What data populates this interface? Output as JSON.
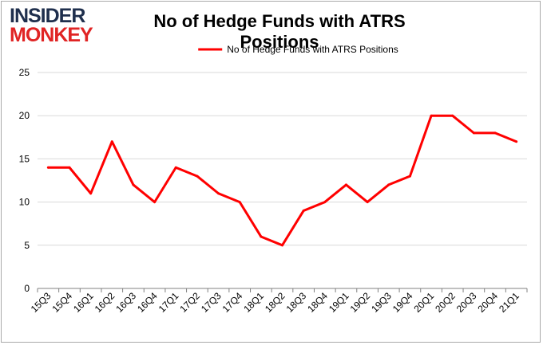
{
  "logo": {
    "line1": "INSIDER",
    "line2": "MONKEY"
  },
  "colors": {
    "series": "#ff0000",
    "grid": "#d9d9d9",
    "axis": "#808080"
  },
  "chart_data": {
    "type": "line",
    "title": "No of Hedge Funds with ATRS Positions",
    "xlabel": "",
    "ylabel": "",
    "categories": [
      "15Q3",
      "15Q4",
      "16Q1",
      "16Q2",
      "16Q3",
      "16Q4",
      "17Q1",
      "17Q2",
      "17Q3",
      "17Q4",
      "18Q1",
      "18Q2",
      "18Q3",
      "18Q4",
      "19Q1",
      "19Q2",
      "19Q3",
      "19Q4",
      "20Q1",
      "20Q2",
      "20Q3",
      "20Q4",
      "21Q1"
    ],
    "series": [
      {
        "name": "No of Hedge Funds with ATRS Positions",
        "values": [
          14,
          14,
          11,
          17,
          12,
          10,
          14,
          13,
          11,
          10,
          6,
          5,
          9,
          10,
          12,
          10,
          12,
          13,
          20,
          20,
          18,
          18,
          17
        ]
      }
    ],
    "yticks": [
      "0",
      "5",
      "10",
      "15",
      "20",
      "25"
    ],
    "ylim": [
      0,
      25
    ],
    "grid": true,
    "legend": "top-center"
  }
}
